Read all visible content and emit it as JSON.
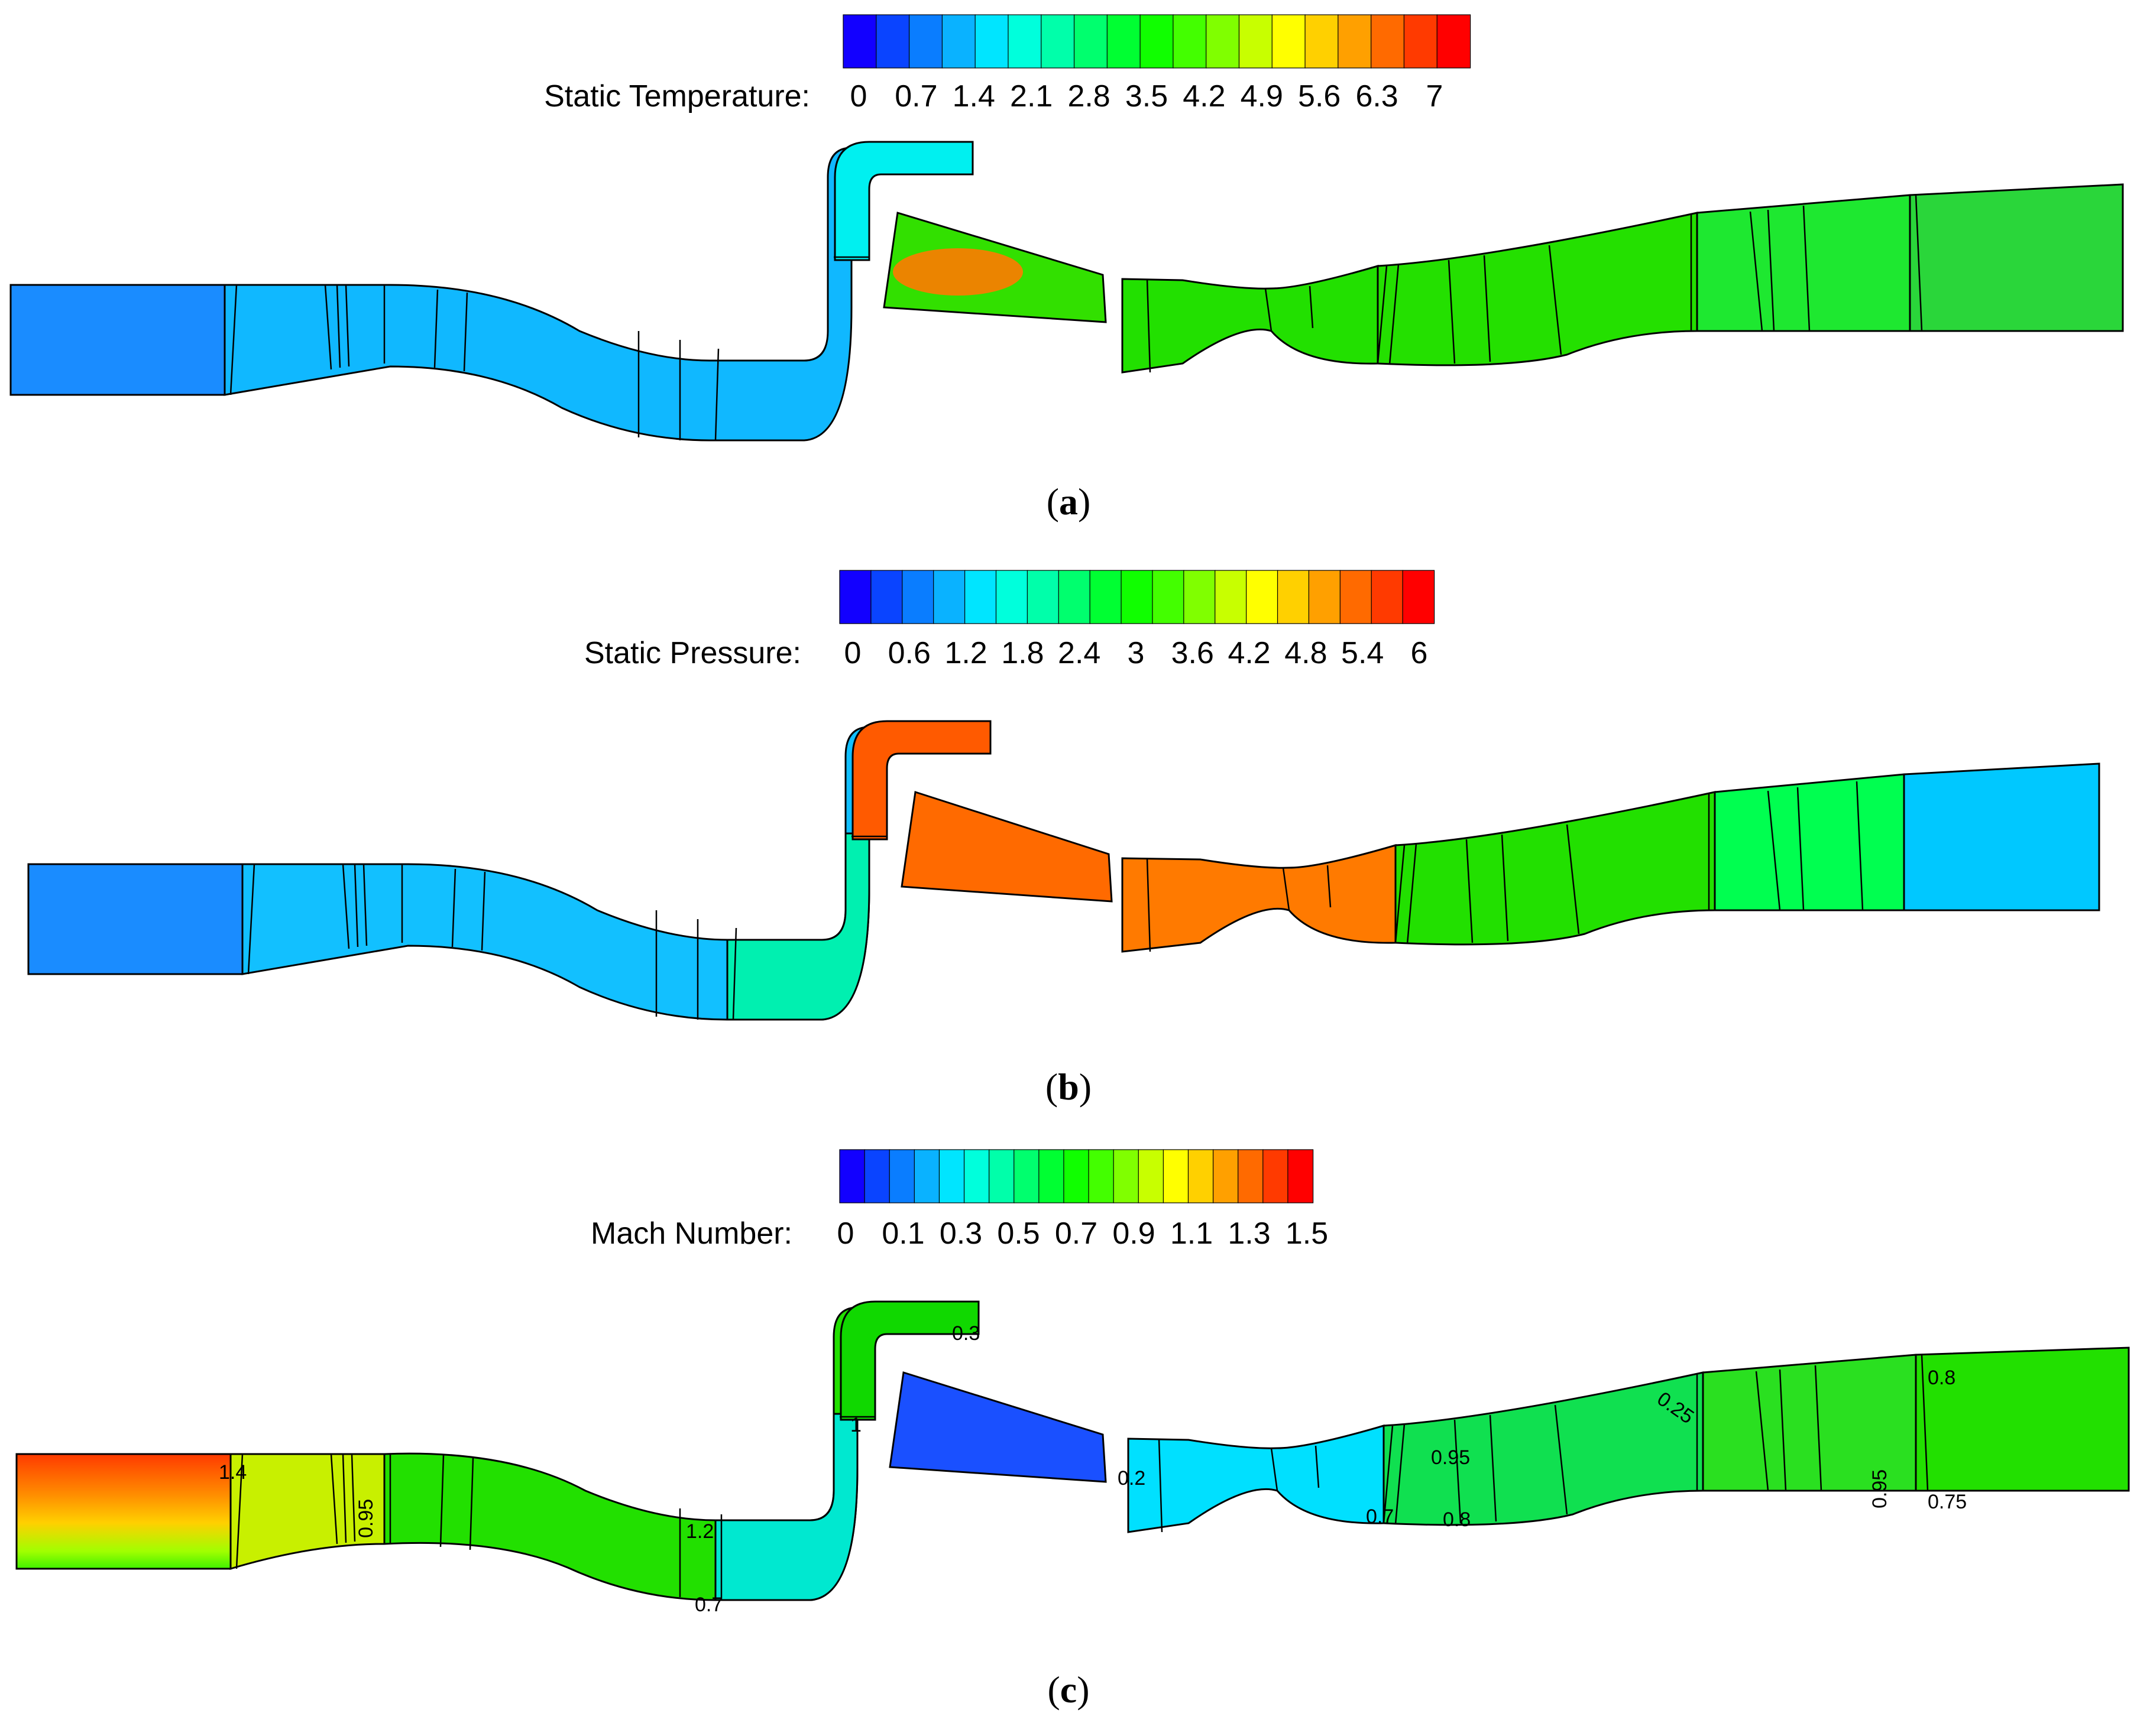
{
  "colormap": [
    "#1200ff",
    "#0a44ff",
    "#0a7dff",
    "#0ab2ff",
    "#00e5ff",
    "#00ffdc",
    "#00ffaa",
    "#00ff6e",
    "#00ff32",
    "#10ff00",
    "#43ff00",
    "#80ff00",
    "#c8ff00",
    "#ffff00",
    "#ffd000",
    "#ffa000",
    "#ff6a00",
    "#ff3a00",
    "#ff0000"
  ],
  "panels": [
    {
      "id": "a",
      "label": "a",
      "variable": "Static Temperature:",
      "ticks": [
        "0",
        "0.7",
        "1.4",
        "2.1",
        "2.8",
        "3.5",
        "4.2",
        "4.9",
        "5.6",
        "6.3",
        "7"
      ],
      "colors": {
        "inlet": "#1a8cff",
        "inlet_duct": "#14aaff",
        "s_duct": "#10b8ff",
        "riser": "#0fc4ff",
        "riser_top": "#00f0f0",
        "combustor": "#32e000",
        "combustor_core": "#ff7a00",
        "nozzle": "#22e000",
        "mid_duct": "#24e000",
        "outlet": "#1ee830",
        "outlet_end": "#2ad63a"
      }
    },
    {
      "id": "b",
      "label": "b",
      "variable": "Static Pressure:",
      "ticks": [
        "0",
        "0.6",
        "1.2",
        "1.8",
        "2.4",
        "3",
        "3.6",
        "4.2",
        "4.8",
        "5.4",
        "6"
      ],
      "colors": {
        "inlet": "#1a8cff",
        "inlet_duct": "#14b0ff",
        "s_duct": "#12c0ff",
        "riser": "#00f0b0",
        "riser_top": "#ff5a00",
        "combustor": "#ff6a00",
        "combustor_core": "#ff6a00",
        "nozzle": "#ff7a00",
        "mid_duct": "#22e000",
        "outlet": "#00ff50",
        "outlet_end": "#00c8ff"
      }
    },
    {
      "id": "c",
      "label": "c",
      "variable": "Mach Number:",
      "ticks": [
        "0",
        "0.1",
        "0.3",
        "0.5",
        "0.7",
        "0.9",
        "1.1",
        "1.3",
        "1.5"
      ],
      "colors": {
        "inlet": "#ff8a00",
        "inlet_duct": "#c8f000",
        "s_duct": "#22e000",
        "riser": "#00e8d0",
        "riser_top": "#10d800",
        "combustor": "#1a50ff",
        "combustor_core": "#1a50ff",
        "nozzle": "#00e0ff",
        "mid_duct": "#10e050",
        "outlet": "#2ae020",
        "outlet_end": "#22e000"
      },
      "contour_labels": [
        "1.4",
        "0.95",
        "1.2",
        "0.7",
        "1",
        "0.3",
        "0.2",
        "0.7",
        "0.95",
        "0.8",
        "0.25",
        "0.95",
        "0.8",
        "0.75"
      ]
    }
  ]
}
